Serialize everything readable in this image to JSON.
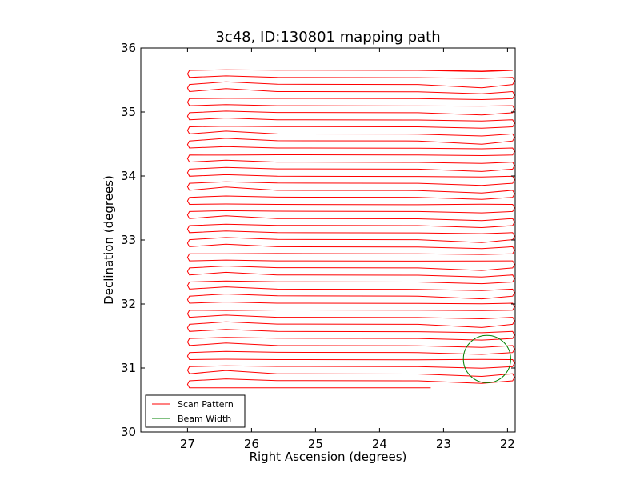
{
  "chart_data": {
    "type": "line",
    "title": "3c48, ID:130801 mapping path",
    "xlabel": "Right Ascension (degrees)",
    "ylabel": "Declination (degrees)",
    "xlim": [
      27.73,
      21.88
    ],
    "ylim": [
      30,
      36
    ],
    "xticks": [
      27,
      26,
      25,
      24,
      23,
      22
    ],
    "yticks": [
      30,
      31,
      32,
      33,
      34,
      35,
      36
    ],
    "xtick_labels": [
      "27",
      "26",
      "25",
      "24",
      "23",
      "22"
    ],
    "ytick_labels": [
      "30",
      "31",
      "32",
      "33",
      "34",
      "35",
      "36"
    ],
    "legend_position": "lower-left",
    "series": [
      {
        "name": "Scan Pattern",
        "color": "#ff0000",
        "kind": "raster",
        "ra_east": 26.97,
        "ra_west": 21.92,
        "dec_start": 30.69,
        "dec_end": 35.65,
        "row_count": 46,
        "start_ra": 23.2,
        "end_ra": 23.2
      },
      {
        "name": "Beam Width",
        "color": "#008000",
        "kind": "circle",
        "center_ra": 22.32,
        "center_dec": 31.14,
        "radius_deg": 0.37
      }
    ],
    "legend": [
      {
        "label": "Scan Pattern",
        "color": "#ff0000"
      },
      {
        "label": "Beam Width",
        "color": "#008000"
      }
    ]
  }
}
